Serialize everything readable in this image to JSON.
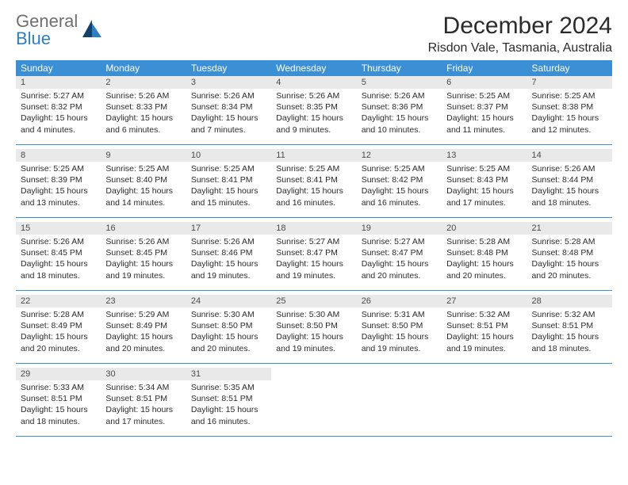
{
  "logo": {
    "text1": "General",
    "text2": "Blue"
  },
  "title": "December 2024",
  "subtitle": "Risdon Vale, Tasmania, Australia",
  "colors": {
    "header_bg": "#3b8fd4",
    "header_text": "#ffffff",
    "daynum_bg": "#e9e9e9",
    "border": "#3b8fd4",
    "logo_gray": "#6f6f6f",
    "logo_blue": "#2d7fc4"
  },
  "weekdays": [
    "Sunday",
    "Monday",
    "Tuesday",
    "Wednesday",
    "Thursday",
    "Friday",
    "Saturday"
  ],
  "weeks": [
    [
      {
        "n": "1",
        "sr": "5:27 AM",
        "ss": "8:32 PM",
        "dl": "15 hours and 4 minutes."
      },
      {
        "n": "2",
        "sr": "5:26 AM",
        "ss": "8:33 PM",
        "dl": "15 hours and 6 minutes."
      },
      {
        "n": "3",
        "sr": "5:26 AM",
        "ss": "8:34 PM",
        "dl": "15 hours and 7 minutes."
      },
      {
        "n": "4",
        "sr": "5:26 AM",
        "ss": "8:35 PM",
        "dl": "15 hours and 9 minutes."
      },
      {
        "n": "5",
        "sr": "5:26 AM",
        "ss": "8:36 PM",
        "dl": "15 hours and 10 minutes."
      },
      {
        "n": "6",
        "sr": "5:25 AM",
        "ss": "8:37 PM",
        "dl": "15 hours and 11 minutes."
      },
      {
        "n": "7",
        "sr": "5:25 AM",
        "ss": "8:38 PM",
        "dl": "15 hours and 12 minutes."
      }
    ],
    [
      {
        "n": "8",
        "sr": "5:25 AM",
        "ss": "8:39 PM",
        "dl": "15 hours and 13 minutes."
      },
      {
        "n": "9",
        "sr": "5:25 AM",
        "ss": "8:40 PM",
        "dl": "15 hours and 14 minutes."
      },
      {
        "n": "10",
        "sr": "5:25 AM",
        "ss": "8:41 PM",
        "dl": "15 hours and 15 minutes."
      },
      {
        "n": "11",
        "sr": "5:25 AM",
        "ss": "8:41 PM",
        "dl": "15 hours and 16 minutes."
      },
      {
        "n": "12",
        "sr": "5:25 AM",
        "ss": "8:42 PM",
        "dl": "15 hours and 16 minutes."
      },
      {
        "n": "13",
        "sr": "5:25 AM",
        "ss": "8:43 PM",
        "dl": "15 hours and 17 minutes."
      },
      {
        "n": "14",
        "sr": "5:26 AM",
        "ss": "8:44 PM",
        "dl": "15 hours and 18 minutes."
      }
    ],
    [
      {
        "n": "15",
        "sr": "5:26 AM",
        "ss": "8:45 PM",
        "dl": "15 hours and 18 minutes."
      },
      {
        "n": "16",
        "sr": "5:26 AM",
        "ss": "8:45 PM",
        "dl": "15 hours and 19 minutes."
      },
      {
        "n": "17",
        "sr": "5:26 AM",
        "ss": "8:46 PM",
        "dl": "15 hours and 19 minutes."
      },
      {
        "n": "18",
        "sr": "5:27 AM",
        "ss": "8:47 PM",
        "dl": "15 hours and 19 minutes."
      },
      {
        "n": "19",
        "sr": "5:27 AM",
        "ss": "8:47 PM",
        "dl": "15 hours and 20 minutes."
      },
      {
        "n": "20",
        "sr": "5:28 AM",
        "ss": "8:48 PM",
        "dl": "15 hours and 20 minutes."
      },
      {
        "n": "21",
        "sr": "5:28 AM",
        "ss": "8:48 PM",
        "dl": "15 hours and 20 minutes."
      }
    ],
    [
      {
        "n": "22",
        "sr": "5:28 AM",
        "ss": "8:49 PM",
        "dl": "15 hours and 20 minutes."
      },
      {
        "n": "23",
        "sr": "5:29 AM",
        "ss": "8:49 PM",
        "dl": "15 hours and 20 minutes."
      },
      {
        "n": "24",
        "sr": "5:30 AM",
        "ss": "8:50 PM",
        "dl": "15 hours and 20 minutes."
      },
      {
        "n": "25",
        "sr": "5:30 AM",
        "ss": "8:50 PM",
        "dl": "15 hours and 19 minutes."
      },
      {
        "n": "26",
        "sr": "5:31 AM",
        "ss": "8:50 PM",
        "dl": "15 hours and 19 minutes."
      },
      {
        "n": "27",
        "sr": "5:32 AM",
        "ss": "8:51 PM",
        "dl": "15 hours and 19 minutes."
      },
      {
        "n": "28",
        "sr": "5:32 AM",
        "ss": "8:51 PM",
        "dl": "15 hours and 18 minutes."
      }
    ],
    [
      {
        "n": "29",
        "sr": "5:33 AM",
        "ss": "8:51 PM",
        "dl": "15 hours and 18 minutes."
      },
      {
        "n": "30",
        "sr": "5:34 AM",
        "ss": "8:51 PM",
        "dl": "15 hours and 17 minutes."
      },
      {
        "n": "31",
        "sr": "5:35 AM",
        "ss": "8:51 PM",
        "dl": "15 hours and 16 minutes."
      },
      null,
      null,
      null,
      null
    ]
  ],
  "labels": {
    "sunrise": "Sunrise:",
    "sunset": "Sunset:",
    "daylight": "Daylight:"
  }
}
